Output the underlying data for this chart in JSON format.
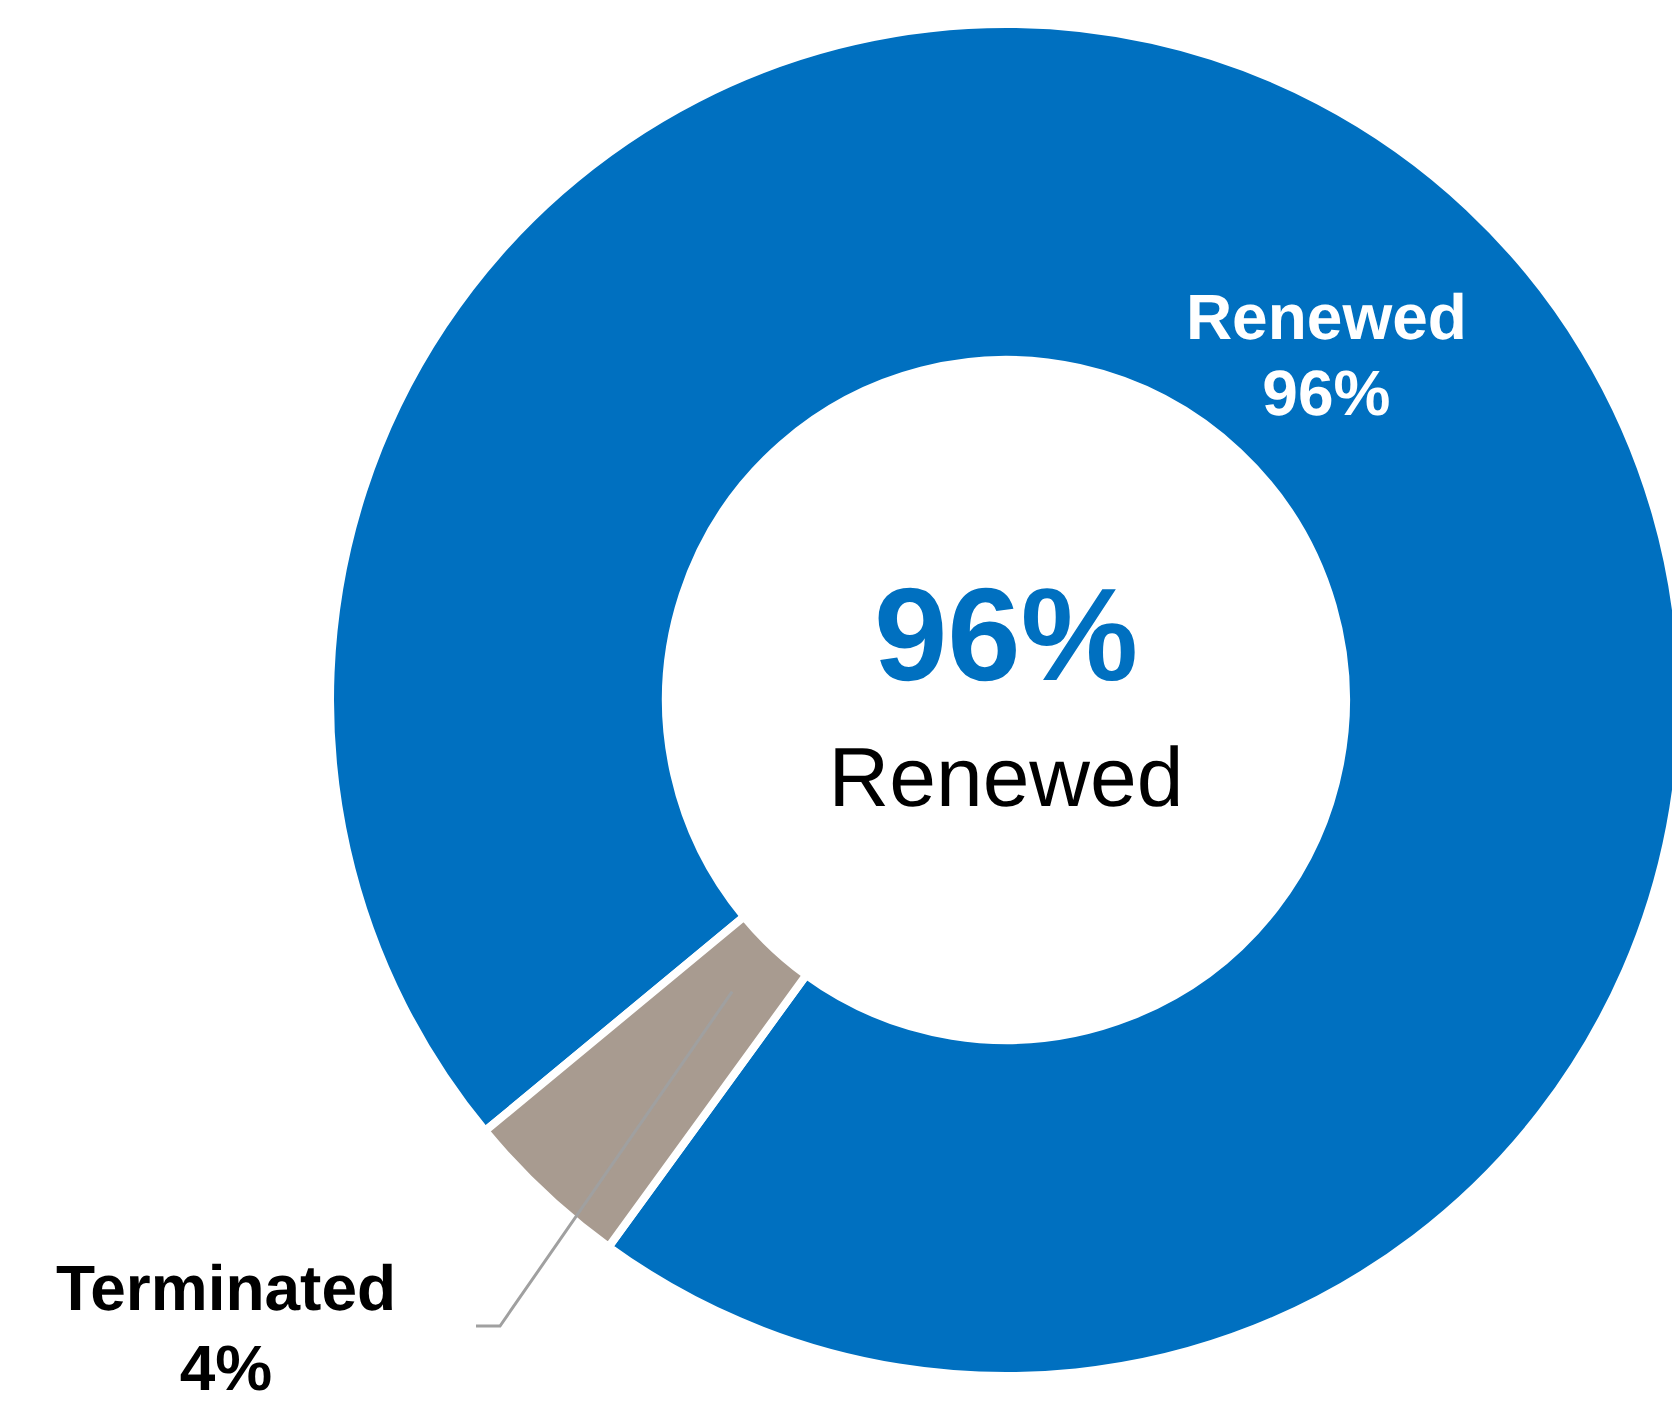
{
  "chart_data": {
    "type": "donut",
    "categories": [
      "Renewed",
      "Terminated"
    ],
    "values": [
      96,
      4
    ],
    "colors": [
      "#0070c0",
      "#a89b90"
    ],
    "value_labels": [
      "96%",
      "4%"
    ],
    "annotations": [
      "96%",
      "Renewed"
    ]
  }
}
